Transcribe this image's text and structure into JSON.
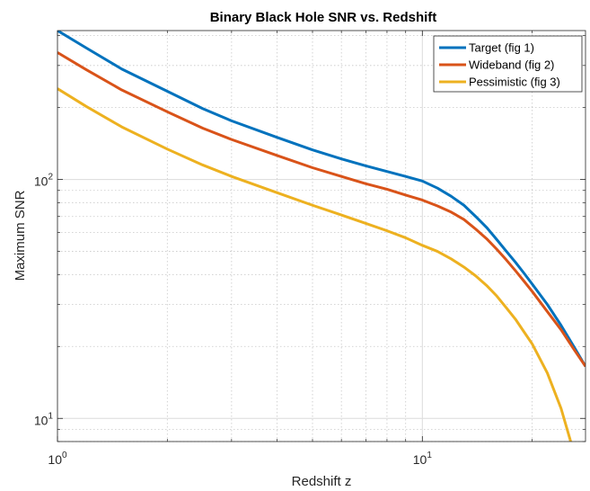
{
  "chart_data": {
    "type": "line",
    "title": "Binary Black Hole SNR vs. Redshift",
    "xlabel": "Redshift z",
    "ylabel": "Maximum SNR",
    "xscale": "log",
    "yscale": "log",
    "xlim": [
      1,
      28
    ],
    "ylim": [
      8,
      420
    ],
    "grid": true,
    "minor_grid": true,
    "legend_position": "top-right",
    "x_ticks": [
      {
        "value": 1,
        "base": "10",
        "exp": "0"
      },
      {
        "value": 10,
        "base": "10",
        "exp": "1"
      }
    ],
    "y_ticks": [
      {
        "value": 10,
        "base": "10",
        "exp": "1"
      },
      {
        "value": 100,
        "base": "10",
        "exp": "2"
      }
    ],
    "series": [
      {
        "name": "Target (fig 1)",
        "color": "#0072BD",
        "x": [
          1,
          1.2,
          1.5,
          2,
          2.5,
          3,
          4,
          5,
          6,
          7,
          8,
          9,
          10,
          11,
          12,
          13,
          14,
          15,
          16,
          17,
          18,
          19,
          20,
          22,
          24,
          26,
          28
        ],
        "y": [
          420,
          355,
          290,
          234,
          198,
          176,
          150,
          133,
          122,
          114,
          108,
          103,
          98.5,
          92,
          85,
          78,
          70,
          63,
          56,
          50,
          45,
          40.5,
          36.5,
          30,
          24.5,
          20,
          16.5
        ]
      },
      {
        "name": "Wideband (fig 2)",
        "color": "#D95319",
        "x": [
          1,
          1.2,
          1.5,
          2,
          2.5,
          3,
          4,
          5,
          6,
          7,
          8,
          9,
          10,
          11,
          12,
          13,
          14,
          15,
          16,
          17,
          18,
          19,
          20,
          22,
          24,
          26,
          28
        ],
        "y": [
          340,
          288,
          237,
          192,
          164,
          147,
          126,
          112,
          103,
          96,
          91,
          86,
          82,
          77.5,
          73,
          68,
          62,
          56.5,
          51,
          46,
          41.5,
          37.5,
          34,
          28,
          23.5,
          19.5,
          16.5
        ]
      },
      {
        "name": "Pessimistic (fig 3)",
        "color": "#EDB120",
        "x": [
          1,
          1.2,
          1.5,
          2,
          2.5,
          3,
          4,
          5,
          6,
          7,
          8,
          9,
          10,
          11,
          12,
          13,
          14,
          15,
          16,
          17,
          18,
          19,
          20,
          22,
          24,
          25.5
        ],
        "y": [
          240,
          202,
          166,
          134,
          115,
          103,
          88,
          78,
          71,
          65.5,
          61,
          57,
          53,
          50,
          46.5,
          43,
          39.5,
          36,
          32.5,
          29,
          26,
          23,
          20.5,
          15.5,
          11,
          8
        ]
      }
    ]
  }
}
